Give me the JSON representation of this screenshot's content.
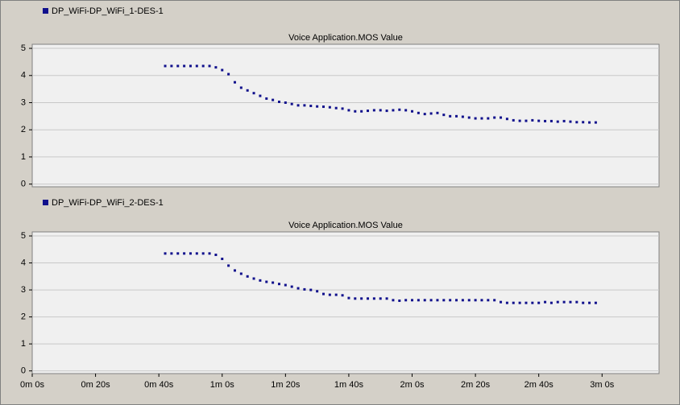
{
  "chart_data": [
    {
      "type": "scatter",
      "title": "Voice Application.MOS Value",
      "x": [
        42,
        44,
        46,
        48,
        50,
        52,
        54,
        56,
        58,
        60,
        62,
        64,
        66,
        68,
        70,
        72,
        74,
        76,
        78,
        80,
        82,
        84,
        86,
        88,
        90,
        92,
        94,
        96,
        98,
        100,
        102,
        104,
        106,
        108,
        110,
        112,
        114,
        116,
        118,
        120,
        122,
        124,
        126,
        128,
        130,
        132,
        134,
        136,
        138,
        140,
        142,
        144,
        146,
        148,
        150,
        152,
        154,
        156,
        158,
        160,
        162,
        164,
        166,
        168,
        170,
        172,
        174,
        176,
        178
      ],
      "series": [
        {
          "name": "DP_WiFi-DP_WiFi_1-DES-1",
          "color": "#10108c",
          "values": [
            4.35,
            4.35,
            4.35,
            4.35,
            4.35,
            4.35,
            4.35,
            4.35,
            4.3,
            4.2,
            4.05,
            3.75,
            3.55,
            3.45,
            3.35,
            3.25,
            3.15,
            3.1,
            3.03,
            3.0,
            2.95,
            2.9,
            2.9,
            2.88,
            2.86,
            2.85,
            2.83,
            2.8,
            2.78,
            2.72,
            2.68,
            2.68,
            2.7,
            2.72,
            2.72,
            2.7,
            2.72,
            2.74,
            2.72,
            2.68,
            2.62,
            2.58,
            2.6,
            2.62,
            2.55,
            2.5,
            2.5,
            2.48,
            2.45,
            2.42,
            2.42,
            2.42,
            2.45,
            2.45,
            2.4,
            2.35,
            2.33,
            2.33,
            2.35,
            2.33,
            2.32,
            2.32,
            2.3,
            2.32,
            2.3,
            2.28,
            2.28,
            2.27,
            2.27
          ]
        }
      ],
      "xlim": [
        0,
        198
      ],
      "ylim": [
        -0.1,
        5.15
      ],
      "yticks": [
        0,
        1,
        2,
        3,
        4,
        5
      ],
      "grid": true
    },
    {
      "type": "scatter",
      "title": "Voice Application.MOS Value",
      "x": [
        42,
        44,
        46,
        48,
        50,
        52,
        54,
        56,
        58,
        60,
        62,
        64,
        66,
        68,
        70,
        72,
        74,
        76,
        78,
        80,
        82,
        84,
        86,
        88,
        90,
        92,
        94,
        96,
        98,
        100,
        102,
        104,
        106,
        108,
        110,
        112,
        114,
        116,
        118,
        120,
        122,
        124,
        126,
        128,
        130,
        132,
        134,
        136,
        138,
        140,
        142,
        144,
        146,
        148,
        150,
        152,
        154,
        156,
        158,
        160,
        162,
        164,
        166,
        168,
        170,
        172,
        174,
        176,
        178
      ],
      "series": [
        {
          "name": "DP_WiFi-DP_WiFi_2-DES-1",
          "color": "#10108c",
          "values": [
            4.35,
            4.35,
            4.35,
            4.35,
            4.35,
            4.35,
            4.35,
            4.35,
            4.3,
            4.15,
            3.9,
            3.72,
            3.6,
            3.5,
            3.42,
            3.35,
            3.3,
            3.27,
            3.22,
            3.18,
            3.12,
            3.06,
            3.02,
            3.0,
            2.95,
            2.85,
            2.82,
            2.82,
            2.8,
            2.7,
            2.68,
            2.68,
            2.68,
            2.68,
            2.68,
            2.68,
            2.62,
            2.6,
            2.62,
            2.62,
            2.62,
            2.62,
            2.62,
            2.62,
            2.62,
            2.62,
            2.62,
            2.62,
            2.62,
            2.62,
            2.62,
            2.62,
            2.62,
            2.55,
            2.52,
            2.52,
            2.52,
            2.52,
            2.52,
            2.52,
            2.55,
            2.52,
            2.55,
            2.55,
            2.55,
            2.55,
            2.52,
            2.52,
            2.52
          ]
        }
      ],
      "xlim": [
        0,
        198
      ],
      "ylim": [
        -0.1,
        5.15
      ],
      "yticks": [
        0,
        1,
        2,
        3,
        4,
        5
      ],
      "grid": true,
      "xticks": [
        {
          "value": 0,
          "label": "0m 0s"
        },
        {
          "value": 20,
          "label": "0m 20s"
        },
        {
          "value": 40,
          "label": "0m 40s"
        },
        {
          "value": 60,
          "label": "1m 0s"
        },
        {
          "value": 80,
          "label": "1m 20s"
        },
        {
          "value": 100,
          "label": "1m 40s"
        },
        {
          "value": 120,
          "label": "2m 0s"
        },
        {
          "value": 140,
          "label": "2m 20s"
        },
        {
          "value": 160,
          "label": "2m 40s"
        },
        {
          "value": 180,
          "label": "3m 0s"
        }
      ]
    }
  ]
}
